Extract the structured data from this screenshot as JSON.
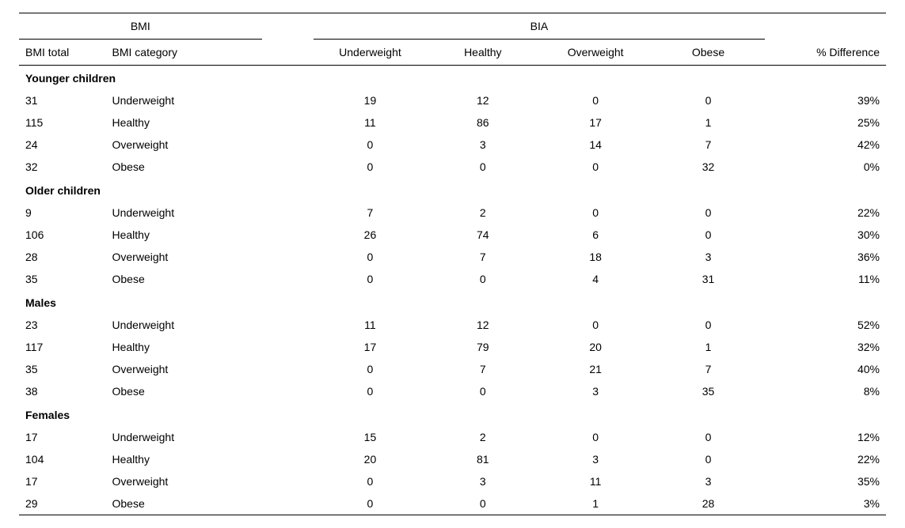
{
  "headers": {
    "bmi_group": "BMI",
    "bia_group": "BIA",
    "bmi_total": "BMI total",
    "bmi_category": "BMI category",
    "underweight": "Underweight",
    "healthy": "Healthy",
    "overweight": "Overweight",
    "obese": "Obese",
    "pct_diff": "% Difference"
  },
  "groups": [
    {
      "title": "Younger children",
      "rows": [
        {
          "total": "31",
          "cat": "Underweight",
          "uw": "19",
          "h": "12",
          "ow": "0",
          "ob": "0",
          "pd": "39%"
        },
        {
          "total": "115",
          "cat": "Healthy",
          "uw": "11",
          "h": "86",
          "ow": "17",
          "ob": "1",
          "pd": "25%"
        },
        {
          "total": "24",
          "cat": "Overweight",
          "uw": "0",
          "h": "3",
          "ow": "14",
          "ob": "7",
          "pd": "42%"
        },
        {
          "total": "32",
          "cat": "Obese",
          "uw": "0",
          "h": "0",
          "ow": "0",
          "ob": "32",
          "pd": "0%"
        }
      ]
    },
    {
      "title": "Older children",
      "rows": [
        {
          "total": "9",
          "cat": "Underweight",
          "uw": "7",
          "h": "2",
          "ow": "0",
          "ob": "0",
          "pd": "22%"
        },
        {
          "total": "106",
          "cat": "Healthy",
          "uw": "26",
          "h": "74",
          "ow": "6",
          "ob": "0",
          "pd": "30%"
        },
        {
          "total": "28",
          "cat": "Overweight",
          "uw": "0",
          "h": "7",
          "ow": "18",
          "ob": "3",
          "pd": "36%"
        },
        {
          "total": "35",
          "cat": "Obese",
          "uw": "0",
          "h": "0",
          "ow": "4",
          "ob": "31",
          "pd": "11%"
        }
      ]
    },
    {
      "title": "Males",
      "rows": [
        {
          "total": "23",
          "cat": "Underweight",
          "uw": "11",
          "h": "12",
          "ow": "0",
          "ob": "0",
          "pd": "52%"
        },
        {
          "total": "117",
          "cat": "Healthy",
          "uw": "17",
          "h": "79",
          "ow": "20",
          "ob": "1",
          "pd": "32%"
        },
        {
          "total": "35",
          "cat": "Overweight",
          "uw": "0",
          "h": "7",
          "ow": "21",
          "ob": "7",
          "pd": "40%"
        },
        {
          "total": "38",
          "cat": "Obese",
          "uw": "0",
          "h": "0",
          "ow": "3",
          "ob": "35",
          "pd": "8%"
        }
      ]
    },
    {
      "title": "Females",
      "rows": [
        {
          "total": "17",
          "cat": "Underweight",
          "uw": "15",
          "h": "2",
          "ow": "0",
          "ob": "0",
          "pd": "12%"
        },
        {
          "total": "104",
          "cat": "Healthy",
          "uw": "20",
          "h": "81",
          "ow": "3",
          "ob": "0",
          "pd": "22%"
        },
        {
          "total": "17",
          "cat": "Overweight",
          "uw": "0",
          "h": "3",
          "ow": "11",
          "ob": "3",
          "pd": "35%"
        },
        {
          "total": "29",
          "cat": "Obese",
          "uw": "0",
          "h": "0",
          "ow": "1",
          "ob": "28",
          "pd": "3%"
        }
      ]
    }
  ],
  "style": {
    "font_family": "Arial, Helvetica, sans-serif",
    "font_size_pt": 10,
    "header_border_color": "#000000",
    "background_color": "#ffffff",
    "text_color": "#000000",
    "col_widths_pct": [
      10,
      18,
      13,
      13,
      13,
      13,
      14
    ]
  }
}
